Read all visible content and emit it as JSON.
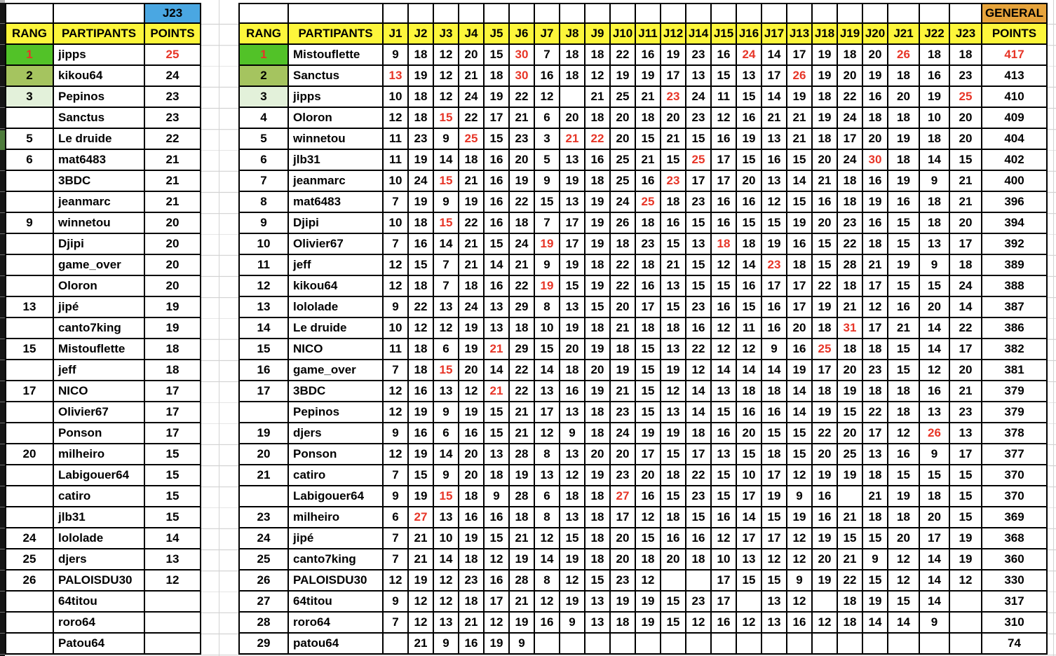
{
  "colors": {
    "header_yellow": "#fdf63b",
    "header_blue": "#4aa7e2",
    "header_gold": "#e7a43c",
    "rank1_green": "#52c228",
    "rank2_green": "#a5c45f",
    "rank3_green": "#e3f1da",
    "red_text": "#e73527",
    "grid_gray": "#d2d2d2",
    "border_black": "#000000"
  },
  "left_table": {
    "day_header": "J23",
    "rang_header": "RANG",
    "partipants_header": "PARTIPANTS",
    "points_header": "POINTS",
    "rows": [
      {
        "rank": "1",
        "name": "jipps",
        "points": "25",
        "rank_style": "rank1",
        "rank_red": true,
        "points_red": true
      },
      {
        "rank": "2",
        "name": "kikou64",
        "points": "24",
        "rank_style": "rank2"
      },
      {
        "rank": "3",
        "name": "Pepinos",
        "points": "23",
        "rank_style": "rank3"
      },
      {
        "rank": "",
        "name": "Sanctus",
        "points": "23"
      },
      {
        "rank": "5",
        "name": "Le druide",
        "points": "22"
      },
      {
        "rank": "6",
        "name": "mat6483",
        "points": "21"
      },
      {
        "rank": "",
        "name": "3BDC",
        "points": "21"
      },
      {
        "rank": "",
        "name": "jeanmarc",
        "points": "21"
      },
      {
        "rank": "9",
        "name": "winnetou",
        "points": "20"
      },
      {
        "rank": "",
        "name": "Djipi",
        "points": "20"
      },
      {
        "rank": "",
        "name": "game_over",
        "points": "20"
      },
      {
        "rank": "",
        "name": "Oloron",
        "points": "20"
      },
      {
        "rank": "13",
        "name": "jipé",
        "points": "19"
      },
      {
        "rank": "",
        "name": "canto7king",
        "points": "19"
      },
      {
        "rank": "15",
        "name": "Mistouflette",
        "points": "18"
      },
      {
        "rank": "",
        "name": "jeff",
        "points": "18"
      },
      {
        "rank": "17",
        "name": "NICO",
        "points": "17"
      },
      {
        "rank": "",
        "name": "Olivier67",
        "points": "17"
      },
      {
        "rank": "",
        "name": "Ponson",
        "points": "17"
      },
      {
        "rank": "20",
        "name": "milheiro",
        "points": "15"
      },
      {
        "rank": "",
        "name": "Labigouer64",
        "points": "15"
      },
      {
        "rank": "",
        "name": "catiro",
        "points": "15"
      },
      {
        "rank": "",
        "name": "jlb31",
        "points": "15"
      },
      {
        "rank": "24",
        "name": "lololade",
        "points": "14"
      },
      {
        "rank": "25",
        "name": "djers",
        "points": "13"
      },
      {
        "rank": "26",
        "name": "PALOISDU30",
        "points": "12"
      },
      {
        "rank": "",
        "name": "64titou",
        "points": ""
      },
      {
        "rank": "",
        "name": "roro64",
        "points": ""
      },
      {
        "rank": "",
        "name": "Patou64",
        "points": ""
      }
    ]
  },
  "right_table": {
    "general_header": "GENERAL",
    "rang_header": "RANG",
    "partipants_header": "PARTIPANTS",
    "points_header": "POINTS",
    "day_columns": [
      "J1",
      "J2",
      "J3",
      "J4",
      "J5",
      "J6",
      "J7",
      "J8",
      "J9",
      "J10",
      "J11",
      "J12",
      "J14",
      "J15",
      "J16",
      "J17",
      "J13",
      "J18",
      "J19",
      "J20",
      "J21",
      "J22",
      "J23"
    ],
    "rows": [
      {
        "rank": "1",
        "name": "Mistouflette",
        "rank_style": "rank1",
        "rank_red": true,
        "scores": [
          9,
          18,
          12,
          20,
          15,
          30,
          7,
          18,
          18,
          22,
          16,
          19,
          23,
          16,
          24,
          14,
          17,
          19,
          18,
          20,
          26,
          18,
          18
        ],
        "red_cols": [
          5,
          14,
          20
        ],
        "total": "417",
        "total_red": true
      },
      {
        "rank": "2",
        "name": "Sanctus",
        "rank_style": "rank2",
        "scores": [
          13,
          19,
          12,
          21,
          18,
          30,
          16,
          18,
          12,
          19,
          19,
          17,
          13,
          15,
          13,
          17,
          26,
          19,
          20,
          19,
          18,
          16,
          23
        ],
        "red_cols": [
          0,
          5,
          16
        ],
        "total": "413"
      },
      {
        "rank": "3",
        "name": "jipps",
        "rank_style": "rank3",
        "scores": [
          10,
          18,
          12,
          24,
          19,
          22,
          12,
          "",
          21,
          25,
          21,
          23,
          24,
          11,
          15,
          14,
          19,
          18,
          22,
          16,
          20,
          19,
          25
        ],
        "red_cols": [
          11,
          22
        ],
        "total": "410"
      },
      {
        "rank": "4",
        "name": "Oloron",
        "scores": [
          12,
          18,
          15,
          22,
          17,
          21,
          6,
          20,
          18,
          20,
          18,
          20,
          23,
          12,
          16,
          21,
          21,
          19,
          24,
          18,
          18,
          10,
          20
        ],
        "red_cols": [
          2
        ],
        "total": "409"
      },
      {
        "rank": "5",
        "name": "winnetou",
        "scores": [
          11,
          23,
          9,
          25,
          15,
          23,
          3,
          21,
          22,
          20,
          15,
          21,
          15,
          16,
          19,
          13,
          21,
          18,
          17,
          20,
          19,
          18,
          20
        ],
        "red_cols": [
          3,
          7,
          8
        ],
        "total": "404"
      },
      {
        "rank": "6",
        "name": "jlb31",
        "scores": [
          11,
          19,
          14,
          18,
          16,
          20,
          5,
          13,
          16,
          25,
          21,
          15,
          25,
          17,
          15,
          16,
          15,
          20,
          24,
          30,
          18,
          14,
          15
        ],
        "red_cols": [
          12,
          19
        ],
        "total": "402"
      },
      {
        "rank": "7",
        "name": "jeanmarc",
        "scores": [
          10,
          24,
          15,
          21,
          16,
          19,
          9,
          19,
          18,
          25,
          16,
          23,
          17,
          17,
          20,
          13,
          14,
          21,
          18,
          16,
          19,
          9,
          21
        ],
        "red_cols": [
          2,
          11
        ],
        "total": "400"
      },
      {
        "rank": "8",
        "name": "mat6483",
        "scores": [
          7,
          19,
          9,
          19,
          16,
          22,
          15,
          13,
          19,
          24,
          25,
          18,
          23,
          16,
          16,
          12,
          15,
          16,
          18,
          19,
          16,
          18,
          21
        ],
        "red_cols": [
          10
        ],
        "total": "396"
      },
      {
        "rank": "9",
        "name": "Djipi",
        "scores": [
          10,
          18,
          15,
          22,
          16,
          18,
          7,
          17,
          19,
          26,
          18,
          16,
          15,
          16,
          15,
          15,
          19,
          20,
          23,
          16,
          15,
          18,
          20
        ],
        "red_cols": [
          2
        ],
        "total": "394"
      },
      {
        "rank": "10",
        "name": "Olivier67",
        "scores": [
          7,
          16,
          14,
          21,
          15,
          24,
          19,
          17,
          19,
          18,
          23,
          15,
          13,
          18,
          18,
          19,
          16,
          15,
          22,
          18,
          15,
          13,
          17
        ],
        "red_cols": [
          6,
          13
        ],
        "total": "392"
      },
      {
        "rank": "11",
        "name": "jeff",
        "scores": [
          12,
          15,
          7,
          21,
          14,
          21,
          9,
          19,
          18,
          22,
          18,
          21,
          15,
          12,
          14,
          23,
          18,
          15,
          28,
          21,
          19,
          9,
          18
        ],
        "red_cols": [
          15
        ],
        "total": "389"
      },
      {
        "rank": "12",
        "name": "kikou64",
        "scores": [
          12,
          18,
          7,
          18,
          16,
          22,
          19,
          15,
          19,
          22,
          16,
          13,
          15,
          15,
          16,
          17,
          17,
          22,
          18,
          17,
          15,
          15,
          24
        ],
        "red_cols": [
          6
        ],
        "total": "388"
      },
      {
        "rank": "13",
        "name": "lololade",
        "scores": [
          9,
          22,
          13,
          24,
          13,
          29,
          8,
          13,
          15,
          20,
          17,
          15,
          23,
          16,
          15,
          16,
          17,
          19,
          21,
          12,
          16,
          20,
          14
        ],
        "red_cols": [],
        "total": "387"
      },
      {
        "rank": "14",
        "name": "Le druide",
        "scores": [
          10,
          12,
          12,
          19,
          13,
          18,
          10,
          19,
          18,
          21,
          18,
          18,
          16,
          12,
          11,
          16,
          20,
          18,
          31,
          17,
          21,
          14,
          22
        ],
        "red_cols": [
          18
        ],
        "total": "386"
      },
      {
        "rank": "15",
        "name": "NICO",
        "scores": [
          11,
          18,
          6,
          19,
          21,
          29,
          15,
          20,
          19,
          18,
          15,
          13,
          22,
          12,
          12,
          9,
          16,
          25,
          18,
          18,
          15,
          14,
          17
        ],
        "red_cols": [
          4,
          17
        ],
        "total": "382"
      },
      {
        "rank": "16",
        "name": "game_over",
        "scores": [
          7,
          18,
          15,
          20,
          14,
          22,
          14,
          18,
          20,
          19,
          15,
          19,
          12,
          14,
          14,
          14,
          19,
          17,
          20,
          23,
          15,
          12,
          20
        ],
        "red_cols": [
          2
        ],
        "total": "381"
      },
      {
        "rank": "17",
        "name": "3BDC",
        "scores": [
          12,
          16,
          13,
          12,
          21,
          22,
          13,
          16,
          19,
          21,
          15,
          12,
          14,
          13,
          18,
          18,
          14,
          18,
          19,
          18,
          18,
          16,
          21
        ],
        "red_cols": [
          4
        ],
        "total": "379"
      },
      {
        "rank": "",
        "name": "Pepinos",
        "scores": [
          12,
          19,
          9,
          19,
          15,
          21,
          17,
          13,
          18,
          23,
          15,
          13,
          14,
          15,
          16,
          16,
          14,
          19,
          15,
          22,
          18,
          13,
          23
        ],
        "red_cols": [],
        "total": "379"
      },
      {
        "rank": "19",
        "name": "djers",
        "scores": [
          9,
          16,
          6,
          16,
          15,
          21,
          12,
          9,
          18,
          24,
          19,
          19,
          18,
          16,
          20,
          15,
          15,
          22,
          20,
          17,
          12,
          26,
          13
        ],
        "red_cols": [
          21
        ],
        "total": "378"
      },
      {
        "rank": "20",
        "name": "Ponson",
        "scores": [
          12,
          19,
          14,
          20,
          13,
          28,
          8,
          13,
          20,
          20,
          17,
          15,
          17,
          13,
          15,
          18,
          15,
          20,
          25,
          13,
          16,
          9,
          17
        ],
        "red_cols": [],
        "total": "377"
      },
      {
        "rank": "21",
        "name": "catiro",
        "scores": [
          7,
          15,
          9,
          20,
          18,
          19,
          13,
          12,
          19,
          23,
          20,
          18,
          22,
          15,
          10,
          17,
          12,
          19,
          19,
          18,
          15,
          15,
          15
        ],
        "red_cols": [],
        "total": "370"
      },
      {
        "rank": "",
        "name": "Labigouer64",
        "scores": [
          9,
          19,
          15,
          18,
          9,
          28,
          6,
          18,
          18,
          27,
          16,
          15,
          23,
          15,
          17,
          19,
          9,
          16,
          "",
          21,
          19,
          18,
          15
        ],
        "red_cols": [
          2,
          9
        ],
        "total": "370"
      },
      {
        "rank": "23",
        "name": "milheiro",
        "scores": [
          6,
          27,
          13,
          16,
          16,
          18,
          8,
          13,
          18,
          17,
          12,
          18,
          15,
          16,
          14,
          15,
          19,
          16,
          21,
          18,
          18,
          20,
          15
        ],
        "red_cols": [
          1
        ],
        "total": "369"
      },
      {
        "rank": "24",
        "name": "jipé",
        "scores": [
          7,
          21,
          10,
          19,
          15,
          21,
          12,
          15,
          18,
          20,
          15,
          16,
          16,
          12,
          17,
          17,
          12,
          19,
          15,
          15,
          20,
          17,
          19
        ],
        "red_cols": [],
        "total": "368"
      },
      {
        "rank": "25",
        "name": "canto7king",
        "scores": [
          7,
          21,
          14,
          18,
          12,
          19,
          14,
          19,
          18,
          20,
          18,
          20,
          18,
          10,
          13,
          12,
          12,
          20,
          21,
          9,
          12,
          14,
          19
        ],
        "red_cols": [],
        "total": "360"
      },
      {
        "rank": "26",
        "name": "PALOISDU30",
        "scores": [
          12,
          19,
          12,
          23,
          16,
          28,
          8,
          12,
          15,
          23,
          12,
          "",
          "",
          17,
          15,
          15,
          9,
          19,
          22,
          15,
          12,
          14,
          12
        ],
        "red_cols": [],
        "total": "330"
      },
      {
        "rank": "27",
        "name": "64titou",
        "scores": [
          9,
          12,
          12,
          18,
          17,
          21,
          12,
          19,
          13,
          19,
          19,
          15,
          23,
          17,
          "",
          13,
          12,
          "",
          18,
          19,
          15,
          14,
          ""
        ],
        "red_cols": [],
        "total": "317"
      },
      {
        "rank": "28",
        "name": "roro64",
        "scores": [
          7,
          12,
          13,
          21,
          12,
          19,
          16,
          9,
          13,
          18,
          19,
          15,
          12,
          16,
          12,
          13,
          16,
          12,
          18,
          14,
          14,
          9,
          ""
        ],
        "red_cols": [],
        "total": "310"
      },
      {
        "rank": "29",
        "name": "patou64",
        "scores": [
          "",
          21,
          9,
          16,
          19,
          9,
          "",
          "",
          "",
          "",
          "",
          "",
          "",
          "",
          "",
          "",
          "",
          "",
          "",
          "",
          "",
          "",
          ""
        ],
        "red_cols": [],
        "total": "74"
      }
    ]
  }
}
